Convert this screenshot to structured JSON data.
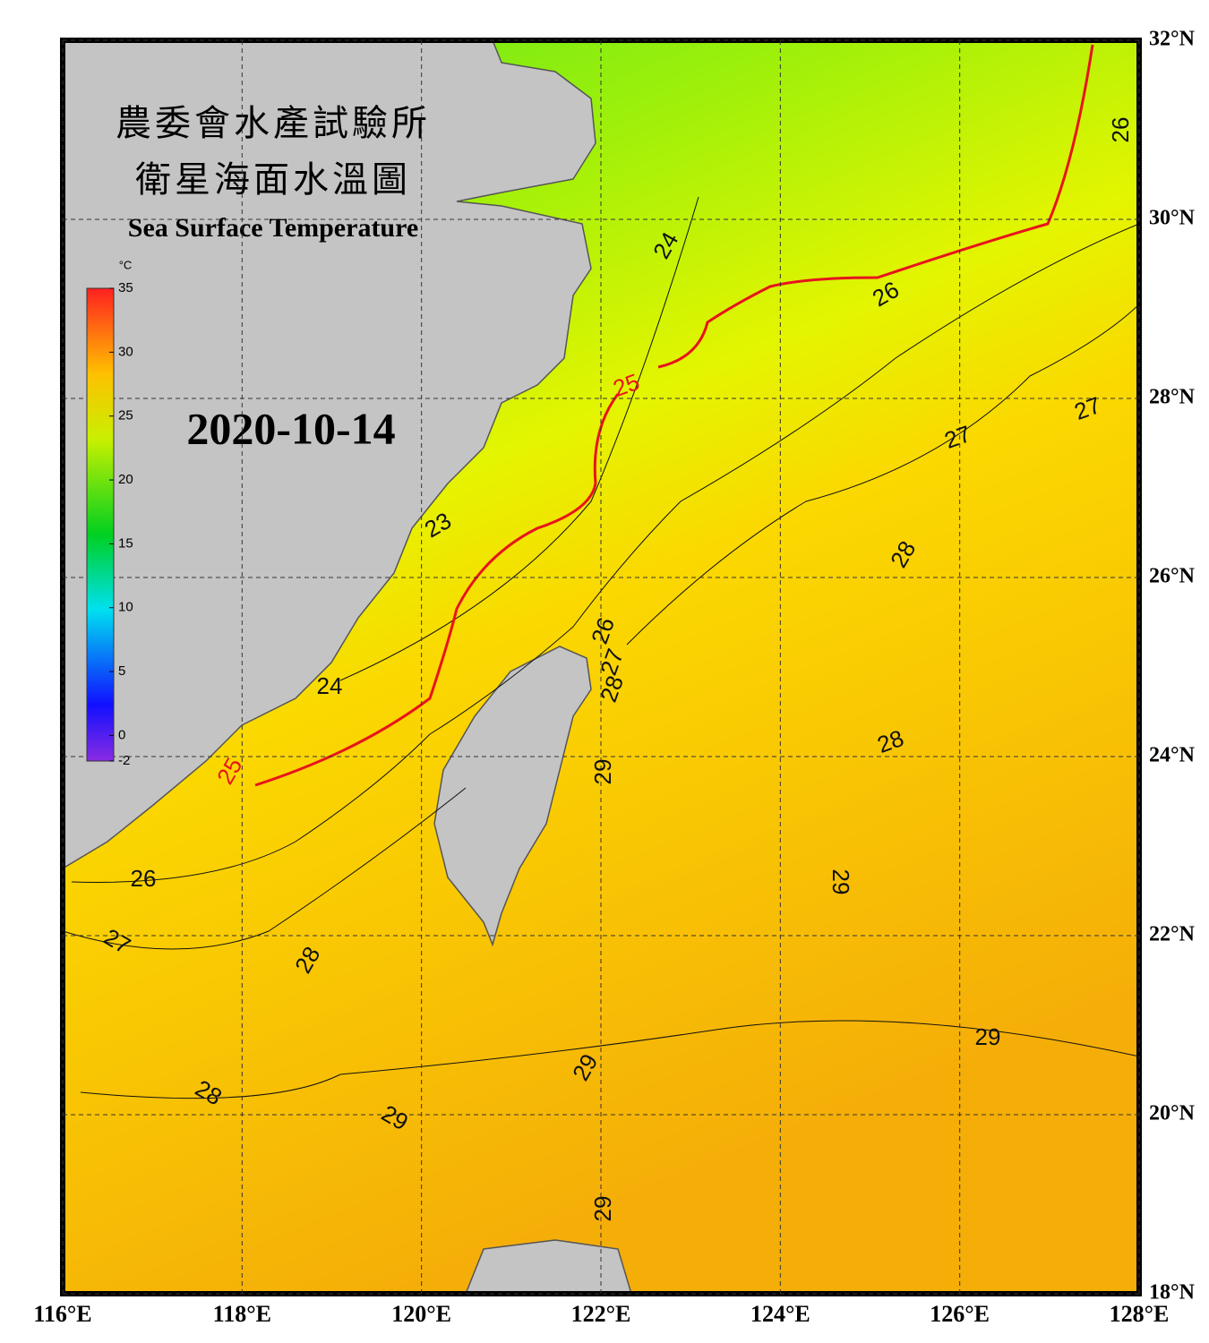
{
  "header": {
    "title_zh_1": "農委會水產試驗所",
    "title_zh_2": "衛星海面水溫圖",
    "title_en": "Sea Surface Temperature",
    "date": "2020-10-14"
  },
  "colorbar": {
    "unit": "°C",
    "range": [
      -2,
      35
    ],
    "ticks": [
      35,
      30,
      25,
      20,
      15,
      10,
      5,
      0,
      -2
    ]
  },
  "map": {
    "lonlim": [
      116,
      128
    ],
    "latlim": [
      18,
      32
    ],
    "lon_ticks": [
      {
        "value": 116,
        "label": "116°E"
      },
      {
        "value": 118,
        "label": "118°E"
      },
      {
        "value": 120,
        "label": "120°E"
      },
      {
        "value": 122,
        "label": "122°E"
      },
      {
        "value": 124,
        "label": "124°E"
      },
      {
        "value": 126,
        "label": "126°E"
      },
      {
        "value": 128,
        "label": "128°E"
      }
    ],
    "lat_ticks": [
      {
        "value": 18,
        "label": "18°N"
      },
      {
        "value": 20,
        "label": "20°N"
      },
      {
        "value": 22,
        "label": "22°N"
      },
      {
        "value": 24,
        "label": "24°N"
      },
      {
        "value": 26,
        "label": "26°N"
      },
      {
        "value": 28,
        "label": "28°N"
      },
      {
        "value": 30,
        "label": "30°N"
      },
      {
        "value": 32,
        "label": "32°N"
      }
    ],
    "highlight_isotherm": 25,
    "highlight_color": "#e8141c",
    "contour_labels": [
      24,
      26,
      26,
      25,
      27,
      27,
      28,
      23,
      26,
      27,
      28,
      24,
      28,
      29,
      25,
      26,
      29,
      27,
      28,
      29,
      29,
      28,
      29,
      29
    ]
  }
}
